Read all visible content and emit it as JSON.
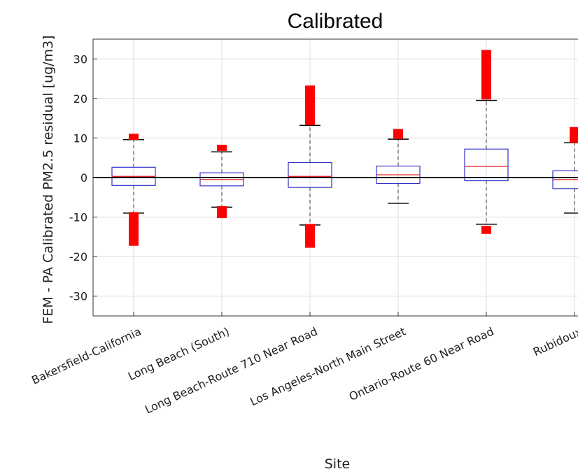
{
  "chart_data": {
    "type": "box",
    "title": "Calibrated",
    "xlabel": "Site",
    "ylabel": "FEM - PA Calibrated PM2.5 residual [ug/m3]",
    "ylim": [
      -35,
      35
    ],
    "yticks": [
      -30,
      -20,
      -10,
      0,
      10,
      20,
      30
    ],
    "grid": true,
    "colors": {
      "box": "#3333cc",
      "median": "#e03030",
      "whisker": "#000000",
      "outlier": "#ff0000",
      "grid": "#dcdcdc",
      "zero_line": "#000000"
    },
    "categories": [
      "Bakersfield-California",
      "Long Beach (South)",
      "Long Beach-Route 710 Near Road",
      "Los Angeles-North Main Street",
      "Ontario-Route 60 Near Road",
      "Rubidoux"
    ],
    "boxes": [
      {
        "q1": -2,
        "median": 0.3,
        "q3": 2.6,
        "whisker_low": -9,
        "whisker_high": 9.6,
        "outlier_ranges": [
          [
            9.8,
            10.8
          ],
          [
            -17,
            -9
          ]
        ]
      },
      {
        "q1": -2.1,
        "median": -0.5,
        "q3": 1.2,
        "whisker_low": -7.5,
        "whisker_high": 6.5,
        "outlier_ranges": [
          [
            7,
            8
          ],
          [
            -10,
            -7.5
          ]
        ]
      },
      {
        "q1": -2.5,
        "median": 0.3,
        "q3": 3.8,
        "whisker_low": -12,
        "whisker_high": 13.2,
        "outlier_ranges": [
          [
            13.5,
            23
          ],
          [
            -17.5,
            -12
          ]
        ]
      },
      {
        "q1": -1.5,
        "median": 0.7,
        "q3": 2.9,
        "whisker_low": -6.5,
        "whisker_high": 9.7,
        "outlier_ranges": [
          [
            10,
            12
          ]
        ]
      },
      {
        "q1": -0.8,
        "median": 2.8,
        "q3": 7.2,
        "whisker_low": -11.8,
        "whisker_high": 19.5,
        "outlier_ranges": [
          [
            20,
            32
          ],
          [
            -14,
            -12.5
          ]
        ]
      },
      {
        "q1": -2.8,
        "median": -0.5,
        "q3": 1.7,
        "whisker_low": -9,
        "whisker_high": 8.8,
        "outlier_ranges": [
          [
            9,
            12.5
          ]
        ]
      }
    ]
  }
}
